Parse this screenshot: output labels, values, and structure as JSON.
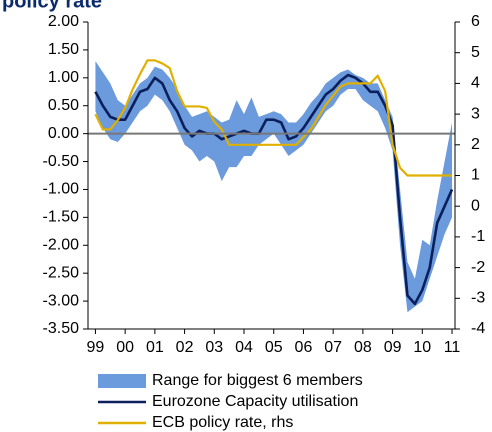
{
  "chart_data": {
    "type": "line",
    "title": "policy rate",
    "x": [
      1999,
      1999.25,
      1999.5,
      1999.75,
      2000,
      2000.25,
      2000.5,
      2000.75,
      2001,
      2001.25,
      2001.5,
      2001.75,
      2002,
      2002.25,
      2002.5,
      2002.75,
      2003,
      2003.25,
      2003.5,
      2003.75,
      2004,
      2004.25,
      2004.5,
      2004.75,
      2005,
      2005.25,
      2005.5,
      2005.75,
      2006,
      2006.25,
      2006.5,
      2006.75,
      2007,
      2007.25,
      2007.5,
      2007.75,
      2008,
      2008.25,
      2008.5,
      2008.75,
      2009,
      2009.25,
      2009.5,
      2009.75,
      2010,
      2010.25,
      2010.5,
      2010.75,
      2011
    ],
    "xlim": [
      1998.75,
      2011.1
    ],
    "xticks": [
      {
        "value": 1999,
        "label": "99"
      },
      {
        "value": 2000,
        "label": "00"
      },
      {
        "value": 2001,
        "label": "01"
      },
      {
        "value": 2002,
        "label": "02"
      },
      {
        "value": 2003,
        "label": "03"
      },
      {
        "value": 2004,
        "label": "04"
      },
      {
        "value": 2005,
        "label": "05"
      },
      {
        "value": 2006,
        "label": "06"
      },
      {
        "value": 2007,
        "label": "07"
      },
      {
        "value": 2008,
        "label": "08"
      },
      {
        "value": 2009,
        "label": "09"
      },
      {
        "value": 2010,
        "label": "10"
      },
      {
        "value": 2011,
        "label": "11"
      }
    ],
    "ylim": [
      -3.5,
      2.0
    ],
    "yticks": [
      {
        "value": 2,
        "label": "2.00"
      },
      {
        "value": 1.5,
        "label": "1.50"
      },
      {
        "value": 1,
        "label": "1.00"
      },
      {
        "value": 0.5,
        "label": "0.50"
      },
      {
        "value": 0,
        "label": "0.00"
      },
      {
        "value": -0.5,
        "label": "-0.50"
      },
      {
        "value": -1,
        "label": "-1.00"
      },
      {
        "value": -1.5,
        "label": "-1.50"
      },
      {
        "value": -2,
        "label": "-2.00"
      },
      {
        "value": -2.5,
        "label": "-2.50"
      },
      {
        "value": -3,
        "label": "-3.00"
      },
      {
        "value": -3.5,
        "label": "-3.50"
      }
    ],
    "y2lim": [
      -4,
      6
    ],
    "y2ticks": [
      6,
      5,
      4,
      3,
      2,
      1,
      0,
      -1,
      -2,
      -3,
      -4
    ],
    "series": [
      {
        "name": "Range for biggest 6 members",
        "color": "#6b9bdc",
        "kind": "range",
        "low": [
          0.4,
          0.1,
          -0.1,
          -0.15,
          0.0,
          0.2,
          0.4,
          0.5,
          0.7,
          0.6,
          0.4,
          0.1,
          -0.2,
          -0.3,
          -0.5,
          -0.4,
          -0.5,
          -0.85,
          -0.6,
          -0.6,
          -0.4,
          -0.4,
          -0.2,
          -0.1,
          0.0,
          -0.2,
          -0.4,
          -0.3,
          -0.2,
          0.0,
          0.2,
          0.4,
          0.5,
          0.7,
          0.8,
          0.8,
          0.6,
          0.5,
          0.4,
          0.1,
          -0.3,
          -2.0,
          -3.2,
          -3.1,
          -3.0,
          -2.6,
          -2.2,
          -1.8,
          -1.5
        ],
        "high": [
          1.3,
          1.1,
          0.9,
          0.6,
          0.5,
          0.7,
          0.9,
          1.0,
          1.2,
          1.15,
          1.0,
          0.8,
          0.5,
          0.3,
          0.35,
          0.4,
          0.3,
          0.2,
          0.25,
          0.6,
          0.35,
          0.65,
          0.3,
          0.35,
          0.4,
          0.35,
          0.2,
          0.2,
          0.35,
          0.55,
          0.7,
          0.9,
          1.0,
          1.1,
          1.15,
          1.05,
          1.0,
          0.9,
          0.9,
          0.6,
          0.3,
          -1.0,
          -2.3,
          -2.6,
          -1.9,
          -2.0,
          -1.2,
          -0.5,
          0.2
        ]
      },
      {
        "name": "Eurozone Capacity utilisation",
        "color": "#0a1f5c",
        "values": [
          0.75,
          0.5,
          0.3,
          0.25,
          0.25,
          0.5,
          0.75,
          0.8,
          1.0,
          0.9,
          0.6,
          0.4,
          0.1,
          -0.05,
          0.05,
          0.0,
          0.0,
          -0.1,
          -0.05,
          0.0,
          0.05,
          0.0,
          0.0,
          0.25,
          0.25,
          0.2,
          -0.1,
          -0.05,
          0.1,
          0.3,
          0.5,
          0.7,
          0.8,
          0.95,
          1.05,
          1.0,
          0.9,
          0.75,
          0.75,
          0.5,
          0.15,
          -1.5,
          -2.9,
          -3.05,
          -2.8,
          -2.4,
          -1.6,
          -1.3,
          -1.0
        ]
      },
      {
        "name": "ECB policy rate, rhs",
        "color": "#e0b000",
        "axis": "y2",
        "values": [
          3.0,
          2.5,
          2.5,
          2.8,
          3.2,
          3.8,
          4.3,
          4.75,
          4.75,
          4.65,
          4.5,
          3.75,
          3.25,
          3.25,
          3.25,
          3.2,
          2.75,
          2.5,
          2.0,
          2.0,
          2.0,
          2.0,
          2.0,
          2.0,
          2.0,
          2.0,
          2.0,
          2.0,
          2.25,
          2.5,
          2.9,
          3.3,
          3.6,
          3.9,
          4.0,
          4.0,
          4.0,
          4.0,
          4.25,
          3.75,
          2.0,
          1.25,
          1.0,
          1.0,
          1.0,
          1.0,
          1.0,
          1.0,
          1.0
        ]
      }
    ]
  }
}
